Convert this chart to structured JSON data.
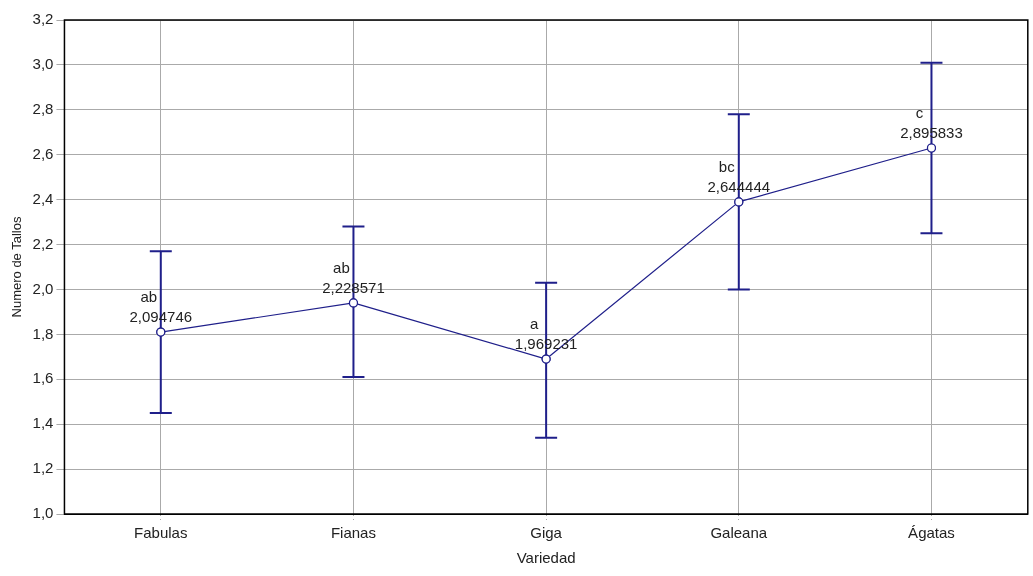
{
  "chart_data": {
    "type": "line",
    "xlabel": "Variedad",
    "ylabel": "Numero de Tallos",
    "categories": [
      "Fabulas",
      "Fianas",
      "Giga",
      "Galeana",
      "Ágatas"
    ],
    "series": [
      {
        "color": "#1f1f8a",
        "values": [
          1.81,
          1.94,
          1.69,
          2.39,
          2.63
        ],
        "errors": [
          [
            1.45,
            2.17
          ],
          [
            1.61,
            2.28
          ],
          [
            1.34,
            2.03
          ],
          [
            2.0,
            2.78
          ],
          [
            2.25,
            3.01
          ]
        ]
      }
    ],
    "ylim": [
      1.0,
      3.2
    ],
    "yticks": [
      {
        "value": 1.0,
        "label": "1,0"
      },
      {
        "value": 1.2,
        "label": "1,2"
      },
      {
        "value": 1.4,
        "label": "1,4"
      },
      {
        "value": 1.6,
        "label": "1,6"
      },
      {
        "value": 1.8,
        "label": "1,8"
      },
      {
        "value": 2.0,
        "label": "2,0"
      },
      {
        "value": 2.2,
        "label": "2,2"
      },
      {
        "value": 2.4,
        "label": "2,4"
      },
      {
        "value": 2.6,
        "label": "2,6"
      },
      {
        "value": 2.8,
        "label": "2,8"
      },
      {
        "value": 3.0,
        "label": "3,0"
      },
      {
        "value": 3.2,
        "label": "3,2"
      }
    ],
    "grid": true,
    "legend": false,
    "marker": "circle",
    "line_style": "solid",
    "annotations": [
      {
        "text": "ab\n2,094746",
        "x": "Fabulas",
        "y": 1.81
      },
      {
        "text": "ab\n2,228571",
        "x": "Fianas",
        "y": 1.94
      },
      {
        "text": "a\n1,969231",
        "x": "Giga",
        "y": 1.69
      },
      {
        "text": "bc\n2,644444",
        "x": "Galeana",
        "y": 2.39
      },
      {
        "text": "c\n2,895833",
        "x": "Ágatas",
        "y": 2.63
      }
    ]
  }
}
